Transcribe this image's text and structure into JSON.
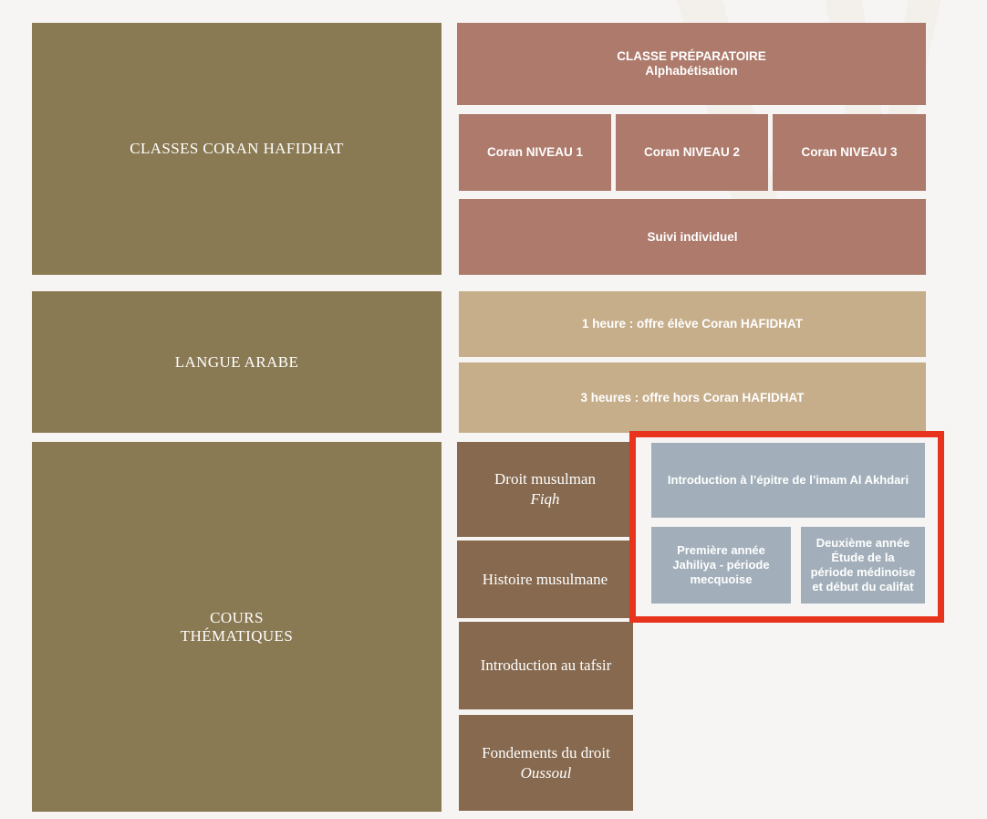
{
  "colors": {
    "page_background": "#f7f5f3",
    "olive": "#8a7a54",
    "rose": "#ad7a6b",
    "tan": "#c6ae8b",
    "brown": "#86694e",
    "steel": "#a2afba",
    "highlight_border": "#e8341c"
  },
  "sections": {
    "coran": {
      "title": "CLASSES CORAN HAFIDHAT",
      "preparatoire": {
        "line1": "CLASSE PRÉPARATOIRE",
        "line2": "Alphabétisation"
      },
      "levels": [
        {
          "label": "Coran NIVEAU 1"
        },
        {
          "label": "Coran NIVEAU 2"
        },
        {
          "label": "Coran NIVEAU 3"
        }
      ],
      "suivi": "Suivi individuel"
    },
    "arabe": {
      "title": "LANGUE ARABE",
      "offers": [
        {
          "label": "1 heure : offre élève Coran HAFIDHAT"
        },
        {
          "label": "3 heures : offre hors Coran HAFIDHAT"
        }
      ]
    },
    "thematiques": {
      "title_line1": "COURS",
      "title_line2": "THÉMATIQUES",
      "courses": [
        {
          "label": "Droit musulman",
          "subtitle": "Fiqh"
        },
        {
          "label": "Histoire musulmane"
        },
        {
          "label": "Introduction au tafsir"
        },
        {
          "label": "Fondements du droit",
          "subtitle": "Oussoul"
        }
      ],
      "fiqh_details": {
        "intro": "Introduction à l’épitre de l’imam Al Akhdari"
      },
      "history_details": {
        "year1": {
          "line1": "Première année",
          "line2": "Jahiliya - période",
          "line3": "mecquoise"
        },
        "year2": {
          "line1": "Deuxième année",
          "line2": "Étude de la",
          "line3": "période médinoise",
          "line4": "et début du califat"
        }
      }
    }
  }
}
